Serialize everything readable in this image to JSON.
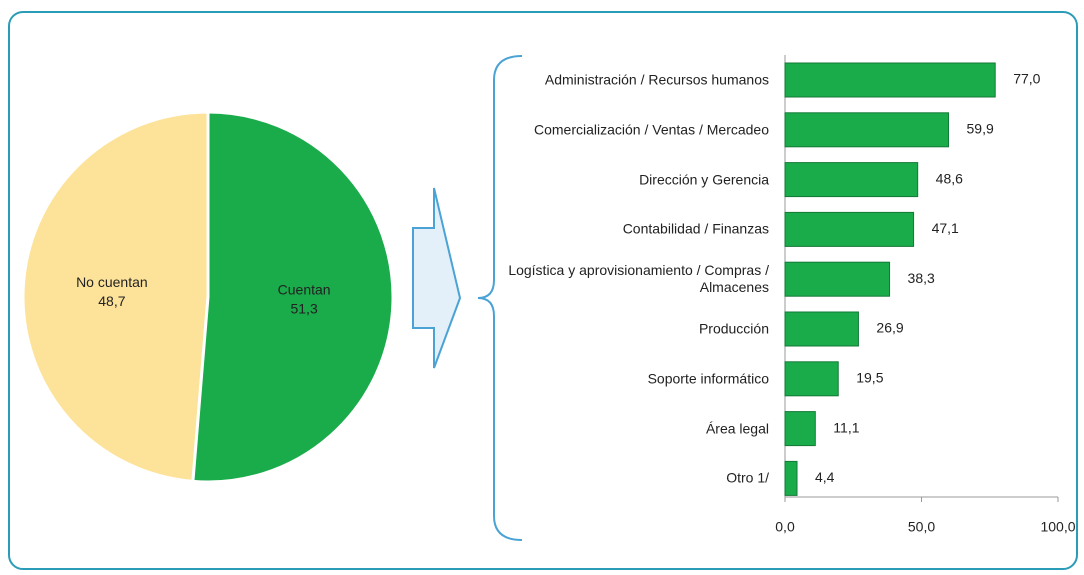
{
  "chart_data": [
    {
      "type": "pie",
      "categories": [
        "No cuentan",
        "Cuentan"
      ],
      "values": [
        48.7,
        51.3
      ],
      "value_labels": [
        "48,7",
        "51,3"
      ],
      "colors": [
        "#fde39a",
        "#1aab4b"
      ]
    },
    {
      "type": "bar",
      "orientation": "horizontal",
      "categories": [
        "Administración / Recursos humanos",
        "Comercialización / Ventas / Mercadeo",
        "Dirección y Gerencia",
        "Contabilidad / Finanzas",
        "Logística y aprovisionamiento / Compras / Almacenes",
        "Producción",
        "Soporte informático",
        "Área legal",
        "Otro 1/"
      ],
      "values": [
        77.0,
        59.9,
        48.6,
        47.1,
        38.3,
        26.9,
        19.5,
        11.1,
        4.4
      ],
      "value_labels": [
        "77,0",
        "59,9",
        "48,6",
        "47,1",
        "38,3",
        "26,9",
        "19,5",
        "11,1",
        "4,4"
      ],
      "color": "#1aab4b",
      "xlim": [
        0,
        100
      ],
      "xticks": [
        {
          "value": 0,
          "label": "0,0"
        },
        {
          "value": 50,
          "label": "50,0"
        },
        {
          "value": 100,
          "label": "100,0"
        }
      ]
    }
  ]
}
